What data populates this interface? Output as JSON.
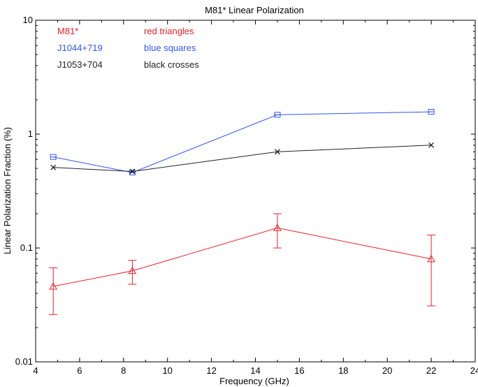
{
  "chart_data": {
    "type": "line",
    "title": "M81* Linear Polarization",
    "xlabel": "Frequency (GHz)",
    "ylabel": "Linear Polarization Fraction (%)",
    "xlim": [
      4,
      24
    ],
    "ylim": [
      0.01,
      10
    ],
    "yscale": "log",
    "xticks": [
      4,
      6,
      8,
      10,
      12,
      14,
      16,
      18,
      20,
      22,
      24
    ],
    "xtick_labels": [
      "4",
      "6",
      "8",
      "10",
      "12",
      "14",
      "16",
      "18",
      "20",
      "22",
      "24"
    ],
    "yticks": [
      0.01,
      0.1,
      1,
      10
    ],
    "ytick_labels": [
      "0.01",
      "0.1",
      "1",
      "10"
    ],
    "grid": false,
    "legend_placement": "top-left",
    "series": [
      {
        "name": "M81*",
        "description": "red triangles",
        "color": "#e8202a",
        "marker": "triangle",
        "x": [
          4.8,
          8.4,
          15.0,
          22.0
        ],
        "y": [
          0.046,
          0.063,
          0.15,
          0.08
        ],
        "err_low": [
          0.026,
          0.048,
          0.1,
          0.031
        ],
        "err_high": [
          0.067,
          0.078,
          0.2,
          0.13
        ]
      },
      {
        "name": "J1044+719",
        "description": "blue squares",
        "color": "#3355ee",
        "marker": "square",
        "x": [
          4.8,
          8.4,
          15.0,
          22.0
        ],
        "y": [
          0.63,
          0.46,
          1.48,
          1.57
        ]
      },
      {
        "name": "J1053+704",
        "description": "black crosses",
        "color": "#222222",
        "marker": "cross",
        "x": [
          4.8,
          8.4,
          15.0,
          22.0
        ],
        "y": [
          0.51,
          0.47,
          0.7,
          0.8
        ]
      }
    ]
  }
}
